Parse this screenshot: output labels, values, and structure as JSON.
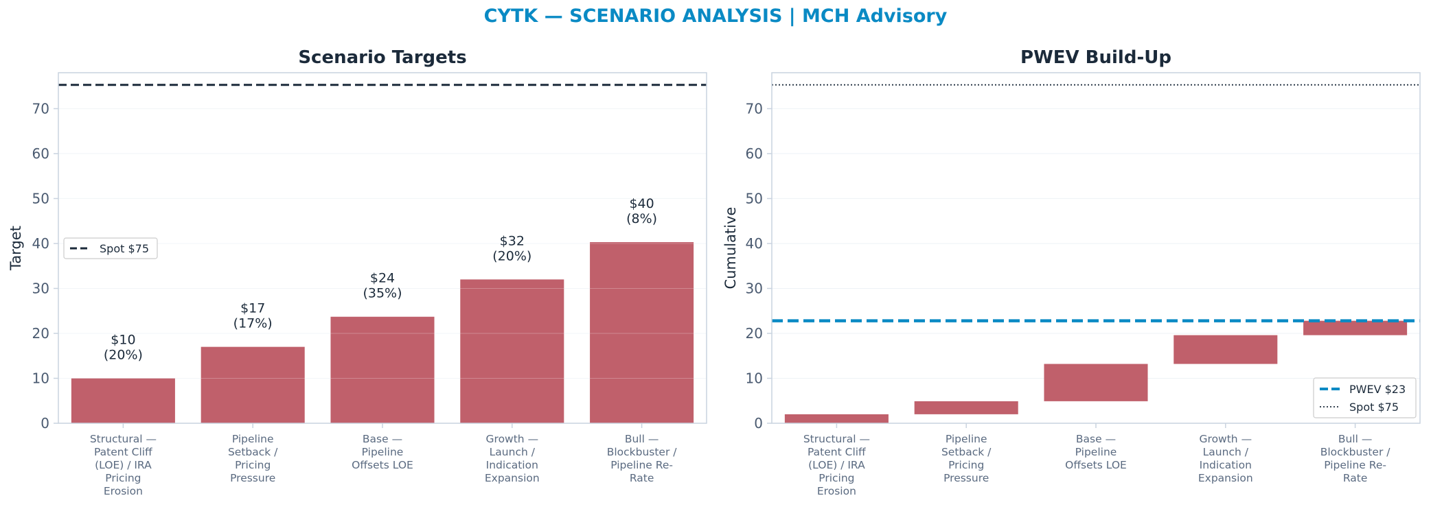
{
  "suptitle": "CYTK — SCENARIO ANALYSIS | MCH Advisory",
  "colors": {
    "bar": "#c0606b",
    "spot_line_left": "#1b2a3a",
    "spot_line_right": "#1b2a3a",
    "pwev_line": "#0a8ac4",
    "suptitle": "#0a8ac4",
    "axis": "#c9d3df",
    "grid": "#eef2f6"
  },
  "chart_data": [
    {
      "type": "bar",
      "title": "Scenario Targets",
      "xlabel": "",
      "ylabel": "Target",
      "ylim": [
        0,
        78
      ],
      "yticks": [
        0,
        10,
        20,
        30,
        40,
        50,
        60,
        70
      ],
      "grid": true,
      "categories": [
        [
          "Structural —",
          "Patent Cliff",
          "(LOE) / IRA",
          "Pricing",
          "Erosion"
        ],
        [
          "Pipeline",
          "Setback /",
          "Pricing",
          "Pressure"
        ],
        [
          "Base —",
          "Pipeline",
          "Offsets LOE"
        ],
        [
          "Growth —",
          "Launch /",
          "Indication",
          "Expansion"
        ],
        [
          "Bull —",
          "Blockbuster /",
          "Pipeline Re-",
          "Rate"
        ]
      ],
      "values": [
        10,
        17,
        23.7,
        32,
        40.3
      ],
      "data_labels": [
        [
          "$10",
          "(20%)"
        ],
        [
          "$17",
          "(17%)"
        ],
        [
          "$24",
          "(35%)"
        ],
        [
          "$32",
          "(20%)"
        ],
        [
          "$40",
          "(8%)"
        ]
      ],
      "reference_lines": [
        {
          "name": "Spot $75",
          "value": 75.3,
          "style": "dashed"
        }
      ],
      "legend": {
        "position": "center-left",
        "entries": [
          "Spot $75"
        ]
      }
    },
    {
      "type": "bar",
      "subtype": "waterfall",
      "title": "PWEV Build-Up",
      "xlabel": "",
      "ylabel": "Cumulative",
      "ylim": [
        0,
        78
      ],
      "yticks": [
        0,
        10,
        20,
        30,
        40,
        50,
        60,
        70
      ],
      "grid": true,
      "categories": [
        [
          "Structural —",
          "Patent Cliff",
          "(LOE) / IRA",
          "Pricing",
          "Erosion"
        ],
        [
          "Pipeline",
          "Setback /",
          "Pricing",
          "Pressure"
        ],
        [
          "Base —",
          "Pipeline",
          "Offsets LOE"
        ],
        [
          "Growth —",
          "Launch /",
          "Indication",
          "Expansion"
        ],
        [
          "Bull —",
          "Blockbuster /",
          "Pipeline Re-",
          "Rate"
        ]
      ],
      "segments": [
        {
          "start": 0,
          "end": 2.0
        },
        {
          "start": 2.0,
          "end": 4.9
        },
        {
          "start": 4.9,
          "end": 13.2
        },
        {
          "start": 13.2,
          "end": 19.6
        },
        {
          "start": 19.6,
          "end": 22.8
        }
      ],
      "reference_lines": [
        {
          "name": "PWEV $23",
          "value": 22.8,
          "style": "dashed"
        },
        {
          "name": "Spot $75",
          "value": 75.3,
          "style": "dotted"
        }
      ],
      "legend": {
        "position": "lower-right",
        "entries": [
          "PWEV $23",
          "Spot $75"
        ]
      }
    }
  ]
}
